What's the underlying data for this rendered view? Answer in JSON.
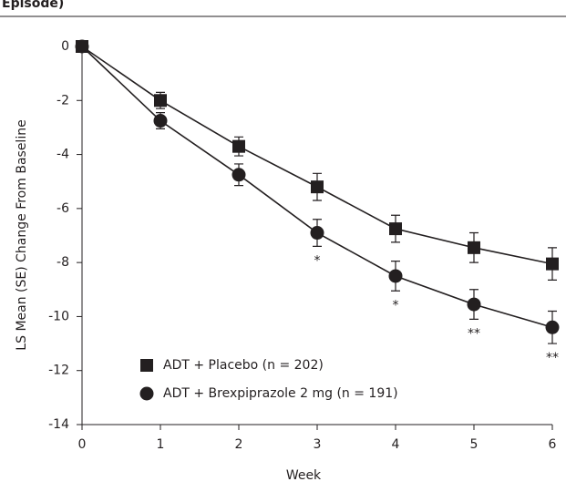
{
  "chart_data": {
    "type": "line",
    "title": "Episode)",
    "x": [
      0,
      1,
      2,
      3,
      4,
      5,
      6
    ],
    "series": [
      {
        "name": "ADT + Placebo (n = 202)",
        "color": "#231f20",
        "marker": "square",
        "values": [
          0,
          -2.0,
          -3.7,
          -5.2,
          -6.75,
          -7.45,
          -8.05
        ],
        "errors": [
          null,
          0.3,
          0.35,
          0.5,
          0.5,
          0.55,
          0.6
        ]
      },
      {
        "name": "ADT + Brexpiprazole 2 mg (n = 191)",
        "color": "#231f20",
        "marker": "circle",
        "values": [
          0,
          -2.75,
          -4.75,
          -6.9,
          -8.5,
          -9.55,
          -10.4
        ],
        "errors": [
          null,
          0.3,
          0.4,
          0.5,
          0.55,
          0.55,
          0.6
        ]
      }
    ],
    "annotations": [
      {
        "x": 3,
        "text": "*"
      },
      {
        "x": 4,
        "text": "*"
      },
      {
        "x": 5,
        "text": "**"
      },
      {
        "x": 6,
        "text": "**"
      }
    ],
    "xlabel": "Week",
    "ylabel": "LS Mean (SE) Change From Baseline",
    "xlim": [
      0,
      6
    ],
    "xticks": [
      0,
      1,
      2,
      3,
      4,
      5,
      6
    ],
    "ylim": [
      -14,
      0
    ],
    "yticks": [
      0,
      -2,
      -4,
      -6,
      -8,
      -10,
      -12,
      -14
    ],
    "legend": "lower-left"
  }
}
